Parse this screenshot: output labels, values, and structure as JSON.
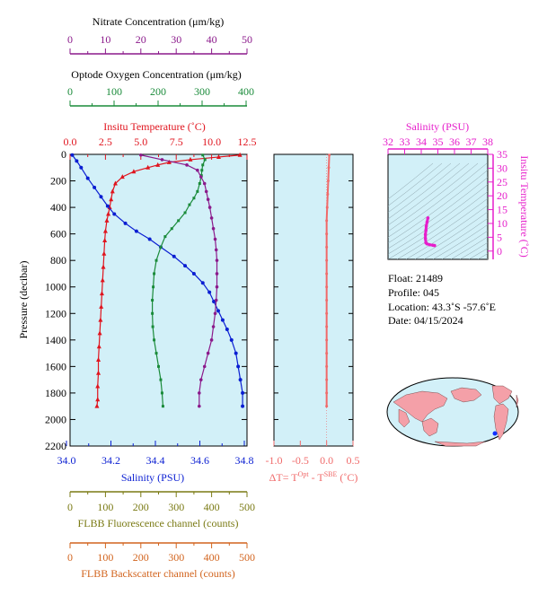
{
  "colors": {
    "nitrate": "#8b1a8b",
    "oxygen": "#1a8b3a",
    "temperature": "#e0141e",
    "salinity": "#0a1ed2",
    "delta": "#f06a6a",
    "fluorescence": "#7a7a14",
    "backscatter": "#d2641e",
    "ts_pink": "#e61ecb",
    "plot_bg": "#d2f0f8"
  },
  "axes": {
    "nitrate": {
      "title": "Nitrate Concentration (μm/kg)",
      "ticks": [
        "0",
        "10",
        "20",
        "30",
        "40",
        "50"
      ]
    },
    "oxygen": {
      "title": "Optode Oxygen Concentration (μm/kg)",
      "ticks": [
        "0",
        "100",
        "200",
        "300",
        "400"
      ]
    },
    "temperature": {
      "title": "Insitu Temperature (˚C)",
      "ticks": [
        "0.0",
        "2.5",
        "5.0",
        "7.5",
        "10.0",
        "12.5"
      ]
    },
    "pressure": {
      "title": "Pressure (decibar)",
      "ticks": [
        "0",
        "200",
        "400",
        "600",
        "800",
        "1000",
        "1200",
        "1400",
        "1600",
        "1800",
        "2000",
        "2200"
      ]
    },
    "salinity": {
      "title": "Salinity (PSU)",
      "ticks": [
        "34.0",
        "34.2",
        "34.4",
        "34.6",
        "34.8"
      ]
    },
    "delta": {
      "title": "ΔT= T",
      "sup1": "Opt",
      "mid": " - T",
      "sup2": "SBE",
      "tail": " (˚C)",
      "ticks": [
        "-1.0",
        "-0.5",
        "0.0",
        "0.5"
      ]
    },
    "fluorescence": {
      "title": "FLBB Fluorescence channel (counts)",
      "ticks": [
        "0",
        "100",
        "200",
        "300",
        "400",
        "500"
      ]
    },
    "backscatter": {
      "title": "FLBB Backscatter channel (counts)",
      "ticks": [
        "0",
        "100",
        "200",
        "300",
        "400",
        "500"
      ]
    },
    "ts_salinity": {
      "title": "Salinity (PSU)",
      "ticks": [
        "32",
        "33",
        "34",
        "35",
        "36",
        "37",
        "38"
      ]
    },
    "ts_temperature": {
      "title": "Insitu Temperature (˚C)",
      "ticks": [
        "0",
        "5",
        "10",
        "15",
        "20",
        "25",
        "30",
        "35"
      ]
    }
  },
  "info": {
    "float": "Float:  21489",
    "profile": "Profile:  045",
    "location": "Location:  43.3˚S  -57.6˚E",
    "date": "Date:  04/15/2024"
  },
  "chart_data": [
    {
      "type": "line",
      "ylim": [
        2200,
        0
      ],
      "series": [
        {
          "name": "Insitu Temperature",
          "xlim": [
            0,
            12.5
          ],
          "points": [
            [
              12,
              5
            ],
            [
              10.5,
              20
            ],
            [
              8.5,
              40
            ],
            [
              7,
              60
            ],
            [
              6.2,
              80
            ],
            [
              5.5,
              100
            ],
            [
              4.5,
              130
            ],
            [
              3.7,
              170
            ],
            [
              3.2,
              220
            ],
            [
              3,
              280
            ],
            [
              2.9,
              340
            ],
            [
              2.8,
              400
            ],
            [
              2.7,
              450
            ],
            [
              2.6,
              500
            ],
            [
              2.5,
              580
            ],
            [
              2.45,
              650
            ],
            [
              2.4,
              750
            ],
            [
              2.35,
              850
            ],
            [
              2.3,
              950
            ],
            [
              2.25,
              1050
            ],
            [
              2.2,
              1150
            ],
            [
              2.15,
              1250
            ],
            [
              2.1,
              1350
            ],
            [
              2.05,
              1450
            ],
            [
              2.0,
              1550
            ],
            [
              2.0,
              1650
            ],
            [
              1.95,
              1750
            ],
            [
              1.95,
              1850
            ],
            [
              1.9,
              1900
            ]
          ]
        },
        {
          "name": "Salinity",
          "xlim": [
            34.0,
            34.8
          ],
          "points": [
            [
              34.01,
              5
            ],
            [
              34.03,
              50
            ],
            [
              34.05,
              100
            ],
            [
              34.08,
              180
            ],
            [
              34.11,
              250
            ],
            [
              34.14,
              320
            ],
            [
              34.17,
              390
            ],
            [
              34.2,
              450
            ],
            [
              34.25,
              520
            ],
            [
              34.3,
              580
            ],
            [
              34.36,
              640
            ],
            [
              34.41,
              700
            ],
            [
              34.47,
              770
            ],
            [
              34.52,
              840
            ],
            [
              34.56,
              900
            ],
            [
              34.6,
              970
            ],
            [
              34.63,
              1040
            ],
            [
              34.65,
              1110
            ],
            [
              34.67,
              1180
            ],
            [
              34.69,
              1250
            ],
            [
              34.71,
              1320
            ],
            [
              34.73,
              1400
            ],
            [
              34.75,
              1500
            ],
            [
              34.76,
              1600
            ],
            [
              34.77,
              1700
            ],
            [
              34.78,
              1800
            ],
            [
              34.78,
              1900
            ]
          ]
        },
        {
          "name": "Optode Oxygen",
          "xlim": [
            0,
            400
          ],
          "points": [
            [
              300,
              5
            ],
            [
              305,
              40
            ],
            [
              300,
              80
            ],
            [
              298,
              120
            ],
            [
              297,
              160
            ],
            [
              293,
              220
            ],
            [
              288,
              280
            ],
            [
              280,
              330
            ],
            [
              270,
              380
            ],
            [
              260,
              440
            ],
            [
              245,
              500
            ],
            [
              230,
              560
            ],
            [
              215,
              620
            ],
            [
              205,
              700
            ],
            [
              195,
              800
            ],
            [
              190,
              900
            ],
            [
              188,
              1000
            ],
            [
              186,
              1100
            ],
            [
              186,
              1200
            ],
            [
              187,
              1300
            ],
            [
              190,
              1400
            ],
            [
              195,
              1500
            ],
            [
              200,
              1600
            ],
            [
              205,
              1700
            ],
            [
              208,
              1800
            ],
            [
              210,
              1900
            ]
          ]
        },
        {
          "name": "Nitrate",
          "xlim": [
            0,
            50
          ],
          "points": [
            [
              20,
              5
            ],
            [
              26,
              40
            ],
            [
              33,
              80
            ],
            [
              36,
              120
            ],
            [
              37,
              170
            ],
            [
              38,
              220
            ],
            [
              38.5,
              280
            ],
            [
              39,
              340
            ],
            [
              39.5,
              400
            ],
            [
              40,
              480
            ],
            [
              40.5,
              560
            ],
            [
              41,
              640
            ],
            [
              41.3,
              720
            ],
            [
              41.5,
              800
            ],
            [
              41.5,
              900
            ],
            [
              41.5,
              1000
            ],
            [
              41.3,
              1100
            ],
            [
              41,
              1200
            ],
            [
              40.5,
              1300
            ],
            [
              40,
              1400
            ],
            [
              39,
              1500
            ],
            [
              38,
              1600
            ],
            [
              37,
              1700
            ],
            [
              36.5,
              1800
            ],
            [
              36.5,
              1900
            ]
          ]
        }
      ]
    },
    {
      "type": "line",
      "xlim": [
        -1.0,
        0.5
      ],
      "ylim": [
        2200,
        0
      ],
      "series": [
        {
          "name": "Delta T",
          "points": [
            [
              0.05,
              5
            ],
            [
              0.04,
              100
            ],
            [
              0.03,
              200
            ],
            [
              0.02,
              300
            ],
            [
              0.01,
              400
            ],
            [
              0.0,
              500
            ],
            [
              0.0,
              600
            ],
            [
              0.0,
              700
            ],
            [
              0.0,
              800
            ],
            [
              0.0,
              900
            ],
            [
              0.0,
              1000
            ],
            [
              0.0,
              1100
            ],
            [
              0.0,
              1200
            ],
            [
              0.0,
              1300
            ],
            [
              0.0,
              1400
            ],
            [
              0.0,
              1500
            ],
            [
              0.0,
              1600
            ],
            [
              0.0,
              1700
            ],
            [
              0.0,
              1800
            ],
            [
              0.0,
              1900
            ]
          ]
        }
      ]
    },
    {
      "type": "scatter",
      "xlim": [
        32,
        38
      ],
      "ylim": [
        -3,
        35
      ],
      "series": [
        {
          "name": "T-S",
          "points": [
            [
              34.4,
              12
            ],
            [
              34.35,
              10.5
            ],
            [
              34.3,
              9
            ],
            [
              34.28,
              7.5
            ],
            [
              34.25,
              6
            ],
            [
              34.25,
              4.5
            ],
            [
              34.28,
              3
            ],
            [
              34.35,
              2.6
            ],
            [
              34.5,
              2.3
            ],
            [
              34.7,
              2.1
            ],
            [
              34.8,
              2.0
            ]
          ]
        }
      ]
    }
  ]
}
